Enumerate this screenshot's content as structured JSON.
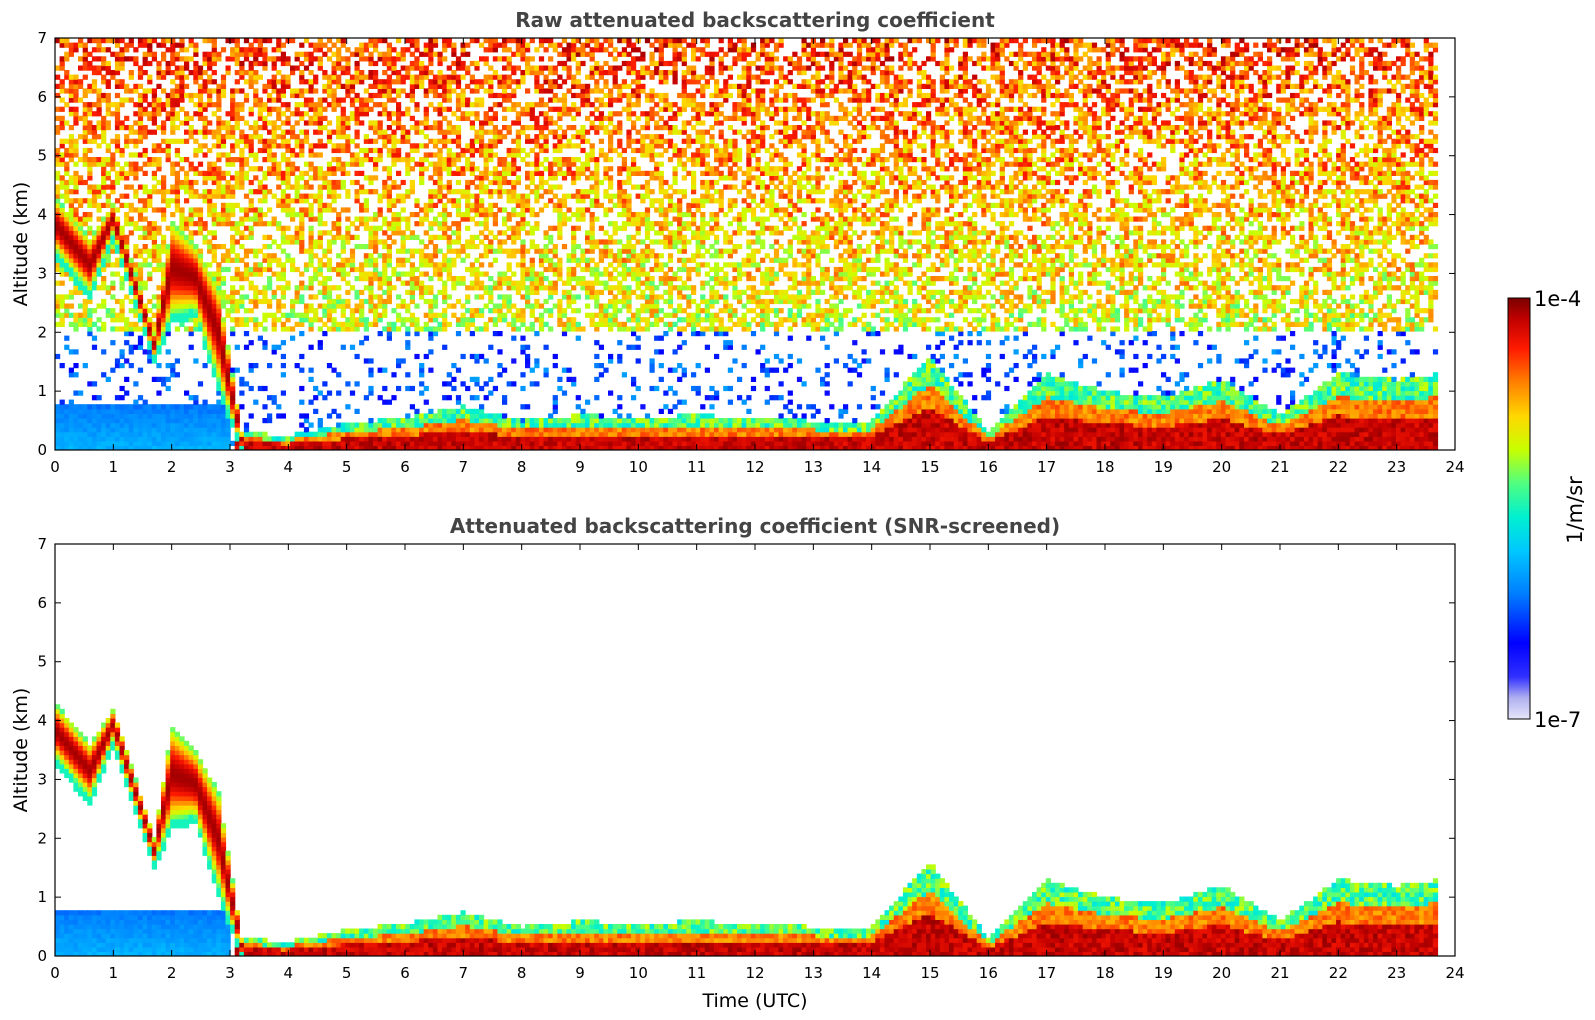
{
  "chart_data": [
    {
      "type": "heatmap",
      "title": "Raw attenuated backscattering coefficient",
      "xlabel": "",
      "ylabel": "Altitude (km)",
      "xlim": [
        0,
        24
      ],
      "ylim": [
        0,
        7
      ],
      "xticks": [
        "0",
        "1",
        "2",
        "3",
        "4",
        "5",
        "6",
        "7",
        "8",
        "9",
        "10",
        "11",
        "12",
        "13",
        "14",
        "15",
        "16",
        "17",
        "18",
        "19",
        "20",
        "21",
        "22",
        "23",
        "24"
      ],
      "yticks": [
        "0",
        "1",
        "2",
        "3",
        "4",
        "5",
        "6",
        "7"
      ],
      "data_end_time": 23.7,
      "features": [
        {
          "feature": "cloud layer",
          "time": [
            0,
            0.6,
            1.0,
            1.7,
            2.0,
            2.4,
            2.8,
            3.2
          ],
          "top_km": [
            4.3,
            3.6,
            4.2,
            2.0,
            3.9,
            3.5,
            2.8,
            0.3
          ],
          "base_km": [
            3.4,
            2.7,
            3.7,
            1.6,
            2.3,
            2.4,
            1.2,
            0.05
          ],
          "level": "high"
        },
        {
          "feature": "aerosol layer",
          "time": [
            0,
            3.0
          ],
          "top_km": 0.8,
          "base_km": 0.0,
          "level": "low"
        },
        {
          "feature": "boundary layer",
          "time": [
            3.2,
            4,
            5,
            6,
            7,
            8,
            9,
            10,
            11,
            12,
            13,
            14,
            15,
            16,
            17,
            18,
            19,
            20,
            21,
            22,
            23,
            23.7
          ],
          "top_km": [
            0.3,
            0.25,
            0.45,
            0.55,
            0.75,
            0.5,
            0.6,
            0.55,
            0.6,
            0.55,
            0.5,
            0.5,
            1.6,
            0.3,
            1.3,
            1.0,
            0.9,
            1.2,
            0.6,
            1.3,
            1.2,
            1.3
          ],
          "level": "high"
        }
      ]
    },
    {
      "type": "heatmap",
      "title": "Attenuated backscattering coefficient (SNR-screened)",
      "xlabel": "Time (UTC)",
      "ylabel": "Altitude (km)",
      "xlim": [
        0,
        24
      ],
      "ylim": [
        0,
        7
      ],
      "xticks": [
        "0",
        "1",
        "2",
        "3",
        "4",
        "5",
        "6",
        "7",
        "8",
        "9",
        "10",
        "11",
        "12",
        "13",
        "14",
        "15",
        "16",
        "17",
        "18",
        "19",
        "20",
        "21",
        "22",
        "23",
        "24"
      ],
      "yticks": [
        "0",
        "1",
        "2",
        "3",
        "4",
        "5",
        "6",
        "7"
      ],
      "data_end_time": 23.7
    }
  ],
  "colorbar": {
    "label": "1/m/sr",
    "max_label": "1e-4",
    "min_label": "1e-7",
    "scale": "log",
    "range": [
      1e-07,
      0.0001
    ],
    "colormap": [
      "#e6e6fa",
      "#0000ff",
      "#00bfff",
      "#00ffbf",
      "#c8ff00",
      "#ffd700",
      "#ff8000",
      "#ff0000",
      "#800000"
    ]
  }
}
